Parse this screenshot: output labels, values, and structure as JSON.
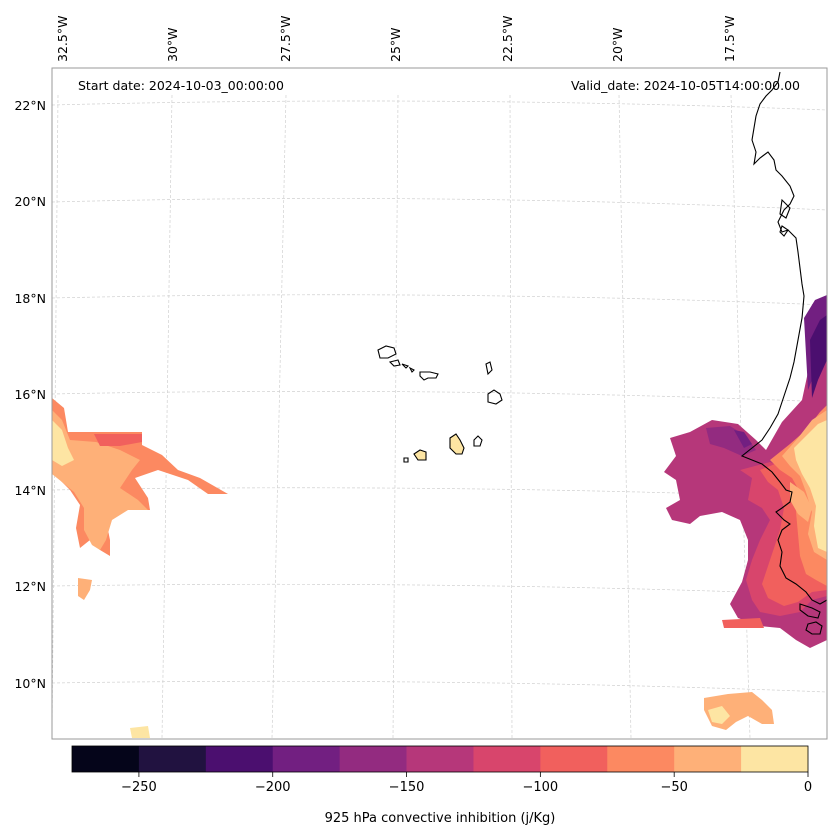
{
  "map": {
    "start_date_label": "Start date: 2024-10-03_00:00:00",
    "valid_date_label": "Valid_date: 2024-10-05T14:00:00.00",
    "lon_labels": [
      "32.5°W",
      "30°W",
      "27.5°W",
      "25°W",
      "22.5°W",
      "20°W",
      "17.5°W"
    ],
    "lat_labels": [
      "22°N",
      "20°N",
      "18°N",
      "16°N",
      "14°N",
      "12°N",
      "10°N"
    ],
    "gridlines": true,
    "features": [
      "west-african-coastline",
      "cape-verde-islands",
      "cin-contour-fields"
    ]
  },
  "colorbar": {
    "label": "925 hPa convective inhibition (j/Kg)",
    "tick_labels": [
      "−250",
      "−200",
      "−150",
      "−100",
      "−50",
      "0"
    ],
    "bounds": [
      -275,
      -250,
      -225,
      -200,
      -175,
      -150,
      -125,
      -100,
      -75,
      -50,
      -25,
      0
    ],
    "colors": [
      "#05051a",
      "#211240",
      "#4b0f6f",
      "#721f81",
      "#932b80",
      "#b6377a",
      "#d8456c",
      "#f1605d",
      "#fc8961",
      "#feb078",
      "#fde5a3"
    ]
  },
  "colors": {
    "grid": "#cccccc",
    "coast": "#000000",
    "frame": "#888888"
  }
}
